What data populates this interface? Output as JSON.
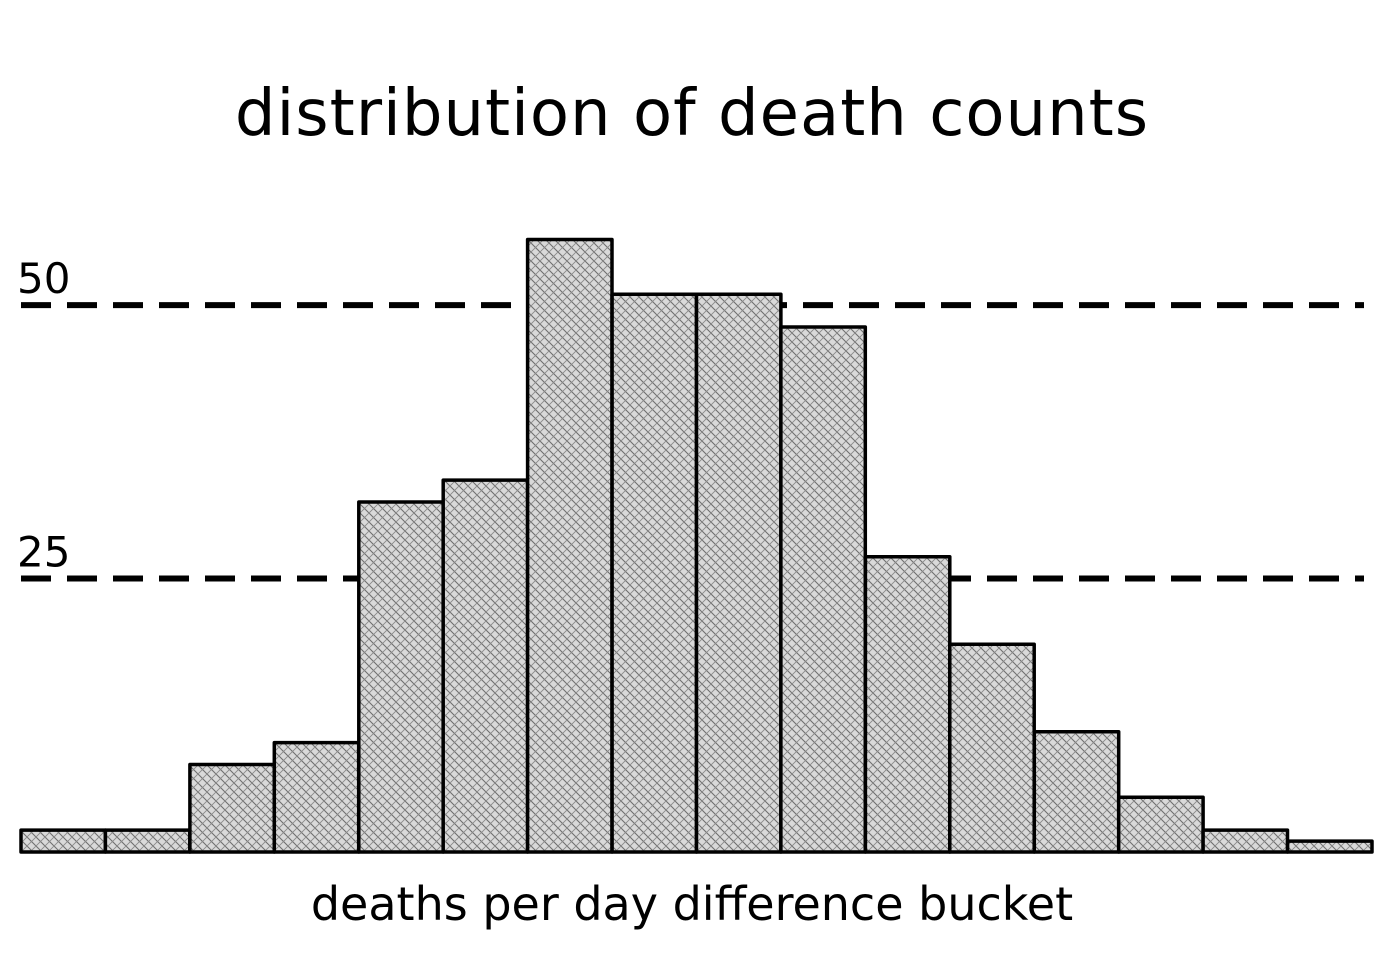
{
  "chart_data": {
    "type": "bar",
    "title": "distribution of death counts",
    "xlabel": "deaths per day difference bucket",
    "ylabel": "",
    "ylim": [
      0,
      56.5
    ],
    "yticks": [
      25,
      50
    ],
    "grid": "horizontal-dashed",
    "bar_style": "hatched",
    "colors": {
      "bar_fill": "#d6d6d6",
      "hatch": "#7a7a7a",
      "stroke": "#000000",
      "grid": "#000000"
    },
    "values": [
      2,
      2,
      8,
      10,
      32,
      34,
      56,
      51,
      51,
      48,
      27,
      19,
      11,
      5,
      2,
      1
    ]
  }
}
